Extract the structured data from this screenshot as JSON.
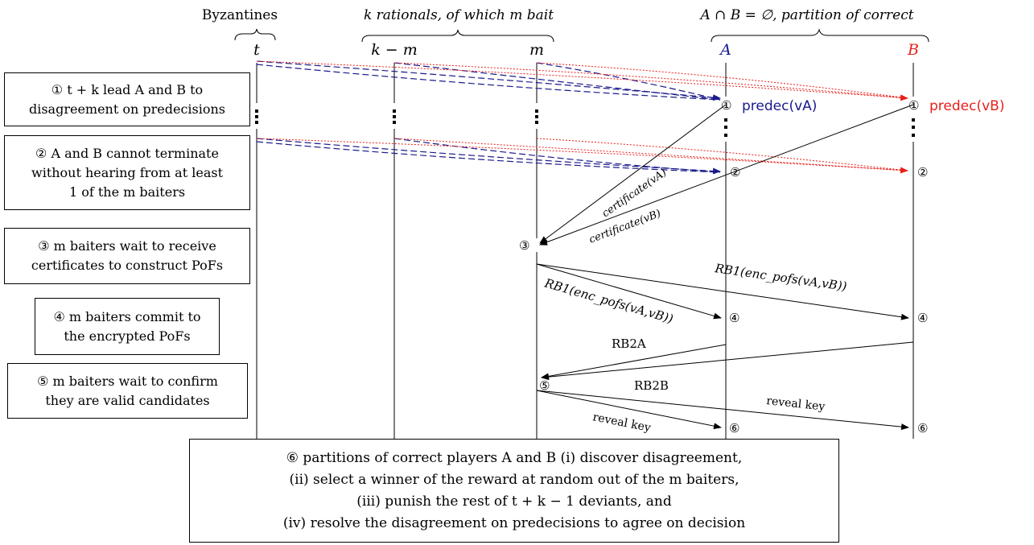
{
  "groups": {
    "byzantines": "Byzantines",
    "rationals": "k rationals, of which m bait",
    "correct": "A ∩ B = ∅, partition of correct"
  },
  "columns": {
    "t": "t",
    "k_minus_m": "k − m",
    "m": "m",
    "A": "A",
    "B": "B"
  },
  "colors": {
    "A": "#1a1a8c",
    "B": "#e8201a",
    "black": "#000000"
  },
  "steps": [
    {
      "id": 1,
      "lines": [
        "① t + k lead A and B to",
        "disagreement on predecisions"
      ]
    },
    {
      "id": 2,
      "lines": [
        "② A and B cannot terminate",
        "without hearing from at least",
        "1 of the m baiters"
      ]
    },
    {
      "id": 3,
      "lines": [
        "③ m baiters wait to receive",
        "certificates to construct PoFs"
      ]
    },
    {
      "id": 4,
      "lines": [
        "④ m baiters commit to",
        "the encrypted PoFs"
      ]
    },
    {
      "id": 5,
      "lines": [
        "⑤ m baiters wait to confirm",
        "they are valid candidates"
      ]
    },
    {
      "id": 6,
      "lines": [
        "⑥ partitions of correct players A and B (i) discover disagreement,",
        "(ii) select a winner of the reward at random out of the m baiters,",
        "(iii) punish the rest of t + k − 1 deviants, and",
        "(iv) resolve the disagreement on predecisions to agree on decision"
      ]
    }
  ],
  "labels": {
    "predec_A": "predec(vA)",
    "predec_B": "predec(vB)",
    "certificate_A": "certificate(vA)",
    "certificate_B": "certificate(vB)",
    "rb1_A": "RB1(enc_pofs(vA,vB))",
    "rb1_B": "RB1(enc_pofs(vA,vB))",
    "rb2_A": "RB2A",
    "rb2_B": "RB2B",
    "reveal_A": "reveal key",
    "reveal_B": "reveal key"
  },
  "markers": {
    "one": "①",
    "two": "②",
    "three": "③",
    "four": "④",
    "five": "⑤",
    "six": "⑥"
  }
}
